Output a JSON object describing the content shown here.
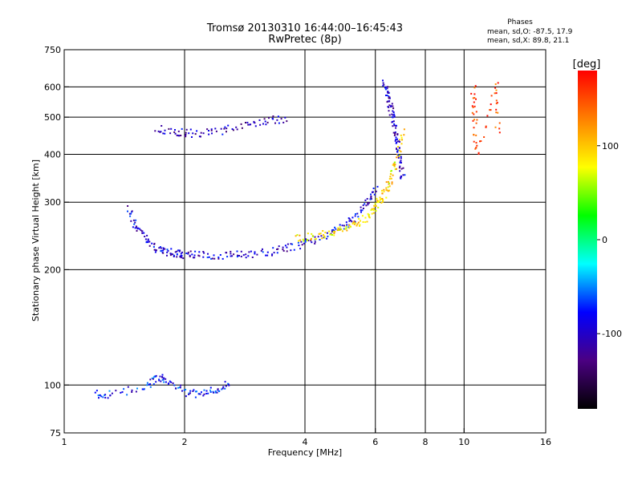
{
  "chart_data": {
    "type": "scatter",
    "title": "Tromsø 20130310 16:44:00–16:45:43",
    "subtitle": "RwPretec (8p)",
    "stats_heading": "Phases",
    "stats_o": "mean, sd,O: -87.5, 17.9",
    "stats_x": "mean, sd,X:  89.8, 21.1",
    "xlabel": "Frequency [MHz]",
    "ylabel": "Stationary phase Virtual Height [km]",
    "x_scale": "log",
    "y_scale": "log",
    "xlim": [
      1,
      16
    ],
    "ylim": [
      75,
      750
    ],
    "x_ticks": [
      1,
      2,
      4,
      6,
      8,
      10,
      16
    ],
    "y_ticks": [
      75,
      100,
      200,
      300,
      400,
      500,
      600,
      750
    ],
    "x_gridlines": [
      2,
      4,
      6,
      8,
      10
    ],
    "y_gridlines": [
      100,
      200,
      300,
      400,
      500,
      600
    ],
    "grid": true,
    "colorbar": {
      "label": "[deg]",
      "range": [
        -180,
        180
      ],
      "ticks": [
        100,
        0,
        -100
      ],
      "colors": [
        "#000000",
        "#4b0082",
        "#0000ff",
        "#00ffff",
        "#00ff00",
        "#ffff00",
        "#ff8000",
        "#ff0000"
      ]
    },
    "traces": [
      {
        "name_hint": "F-layer echo lower branch (phase ~ -90)",
        "x": [
          1.45,
          1.5,
          1.6,
          1.7,
          1.8,
          1.9,
          2.0,
          2.2,
          2.5,
          2.8,
          3.2,
          3.6,
          4.0,
          4.5,
          5.0,
          5.4,
          5.8,
          6.0
        ],
        "y": [
          290,
          260,
          240,
          228,
          223,
          221,
          220,
          219,
          219,
          220,
          223,
          228,
          236,
          248,
          262,
          280,
          305,
          330
        ],
        "phase": -95
      },
      {
        "name_hint": "F-layer echo upper branch (phase ~ +90)",
        "x": [
          3.8,
          4.2,
          4.6,
          5.0,
          5.4,
          5.8,
          6.0,
          6.2,
          6.4,
          6.6,
          6.8,
          7.0
        ],
        "y": [
          242,
          245,
          250,
          256,
          265,
          280,
          295,
          310,
          330,
          360,
          400,
          470
        ],
        "phase": 90
      },
      {
        "name_hint": "second hop echo",
        "x": [
          1.7,
          1.9,
          2.1,
          2.4,
          2.8,
          3.2,
          3.6
        ],
        "y": [
          470,
          460,
          455,
          460,
          475,
          490,
          500
        ],
        "phase": -105
      },
      {
        "name_hint": "E-layer echo",
        "x": [
          1.2,
          1.3,
          1.6,
          1.7,
          1.8,
          2.0,
          2.2,
          2.4,
          2.6
        ],
        "y": [
          95,
          95,
          100,
          105,
          103,
          96,
          95,
          98,
          102
        ],
        "phase": -80
      },
      {
        "name_hint": "vertical streak near 6.5 MHz",
        "x": [
          6.3,
          6.4,
          6.5,
          6.6,
          6.7,
          6.8,
          6.9,
          7.0
        ],
        "y": [
          620,
          580,
          540,
          500,
          460,
          420,
          380,
          340
        ],
        "phase": -100
      },
      {
        "name_hint": "scattered points near 10.5-12 MHz",
        "x": [
          10.5,
          10.6,
          10.7,
          12.0,
          12.1
        ],
        "y": [
          600,
          500,
          400,
          620,
          450
        ],
        "phase": 150
      }
    ]
  }
}
